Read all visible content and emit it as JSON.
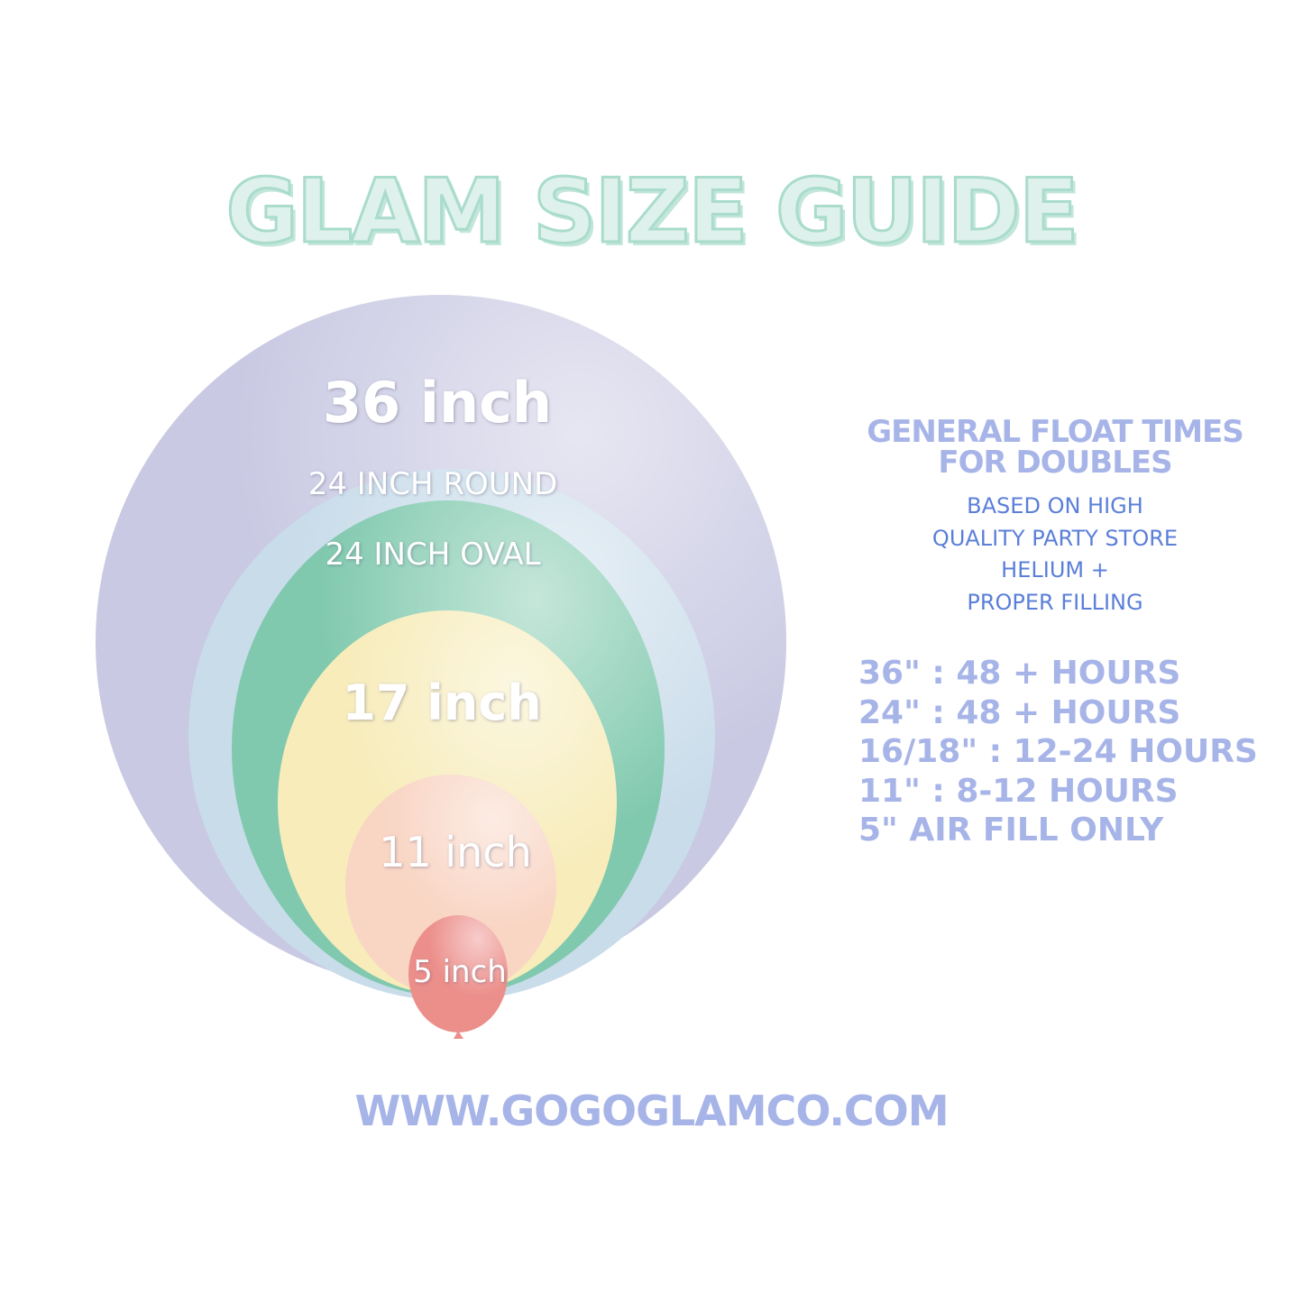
{
  "title": "GLAM SIZE GUIDE",
  "balloons": [
    {
      "label": "36 inch",
      "color": "#c9c9e3"
    },
    {
      "label": "24 INCH ROUND",
      "color": "#c9dcea"
    },
    {
      "label": "24 INCH OVAL",
      "color": "#80c9ae"
    },
    {
      "label": "17 inch",
      "color": "#f7ecba"
    },
    {
      "label": "11 inch",
      "color": "#f9d5c4"
    },
    {
      "label": "5 inch",
      "color": "#ec8e8a"
    }
  ],
  "float_times": {
    "heading_line1": "GENERAL FLOAT TIMES",
    "heading_line2": "FOR DOUBLES",
    "note": [
      "BASED ON HIGH",
      "QUALITY PARTY STORE",
      "HELIUM +",
      "PROPER FILLING"
    ],
    "rows": [
      "36\" : 48 + HOURS",
      "24\" : 48 + HOURS",
      "16/18\" :  12-24 HOURS",
      "11\" : 8-12 HOURS",
      "5\" AIR FILL ONLY"
    ]
  },
  "website": "WWW.GOGOGLAMCO.COM"
}
